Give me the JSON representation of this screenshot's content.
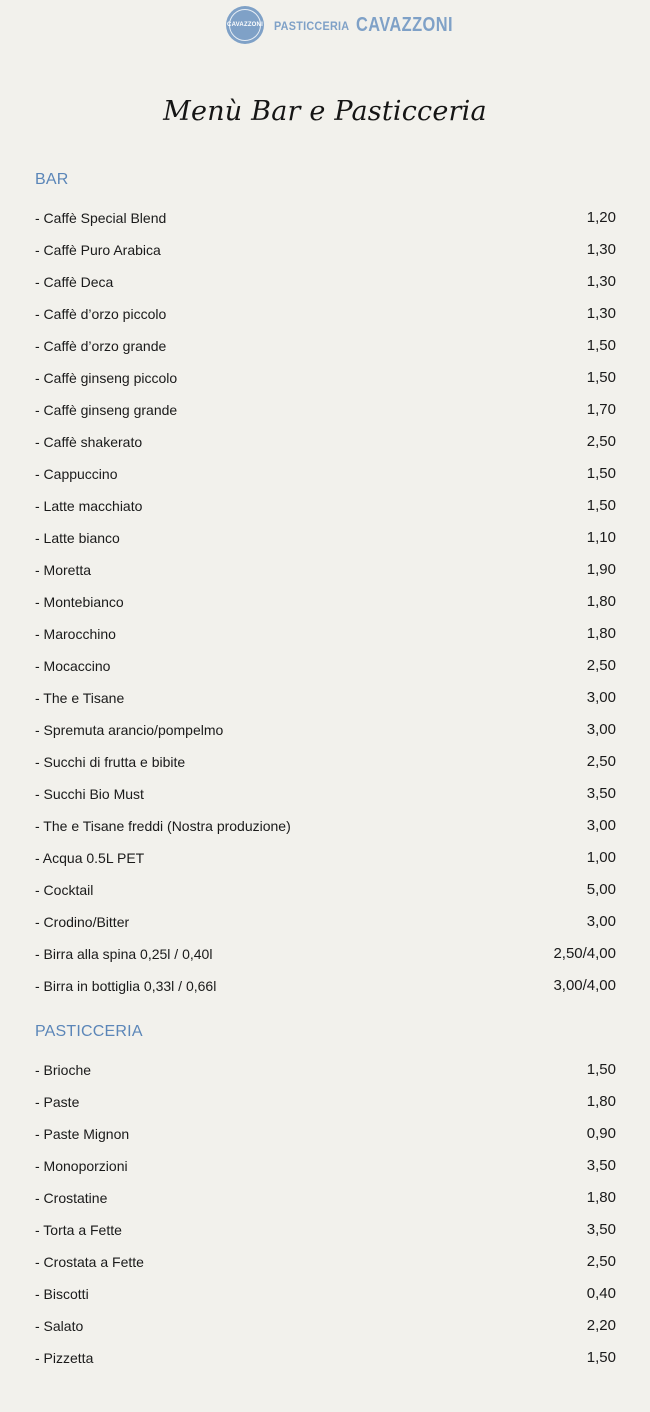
{
  "header": {
    "badge_line1": "CAVAZZONI",
    "badge_line2": "",
    "brand_small": "PASTICCERIA",
    "brand_big": "CAVAZZONI"
  },
  "title": "Menù Bar e Pasticceria",
  "colors": {
    "background": "#f2f1ec",
    "accent": "#5b86b8",
    "logo": "#7fa1c7"
  },
  "sections": [
    {
      "title": "BAR",
      "items": [
        {
          "name": "- Caffè Special Blend",
          "price": "1,20"
        },
        {
          "name": "- Caffè Puro Arabica",
          "price": "1,30"
        },
        {
          "name": "- Caffè Deca",
          "price": "1,30"
        },
        {
          "name": "- Caffè d’orzo piccolo",
          "price": "1,30"
        },
        {
          "name": "- Caffè d’orzo grande",
          "price": "1,50"
        },
        {
          "name": "- Caffè ginseng piccolo",
          "price": "1,50"
        },
        {
          "name": "- Caffè ginseng grande",
          "price": "1,70"
        },
        {
          "name": "- Caffè shakerato",
          "price": "2,50"
        },
        {
          "name": "- Cappuccino",
          "price": "1,50"
        },
        {
          "name": "- Latte macchiato",
          "price": "1,50"
        },
        {
          "name": "- Latte bianco",
          "price": "1,10"
        },
        {
          "name": "- Moretta",
          "price": "1,90"
        },
        {
          "name": "- Montebianco",
          "price": "1,80"
        },
        {
          "name": "- Marocchino",
          "price": "1,80"
        },
        {
          "name": "- Mocaccino",
          "price": "2,50"
        },
        {
          "name": "- The e Tisane",
          "price": "3,00"
        },
        {
          "name": "- Spremuta arancio/pompelmo",
          "price": "3,00"
        },
        {
          "name": "- Succhi di frutta e bibite",
          "price": "2,50"
        },
        {
          "name": "- Succhi Bio Must",
          "price": "3,50"
        },
        {
          "name": "- The e Tisane freddi (Nostra produzione)",
          "price": "3,00"
        },
        {
          "name": "- Acqua 0.5L PET",
          "price": "1,00"
        },
        {
          "name": "- Cocktail",
          "price": "5,00"
        },
        {
          "name": "- Crodino/Bitter",
          "price": "3,00"
        },
        {
          "name": "- Birra alla spina 0,25l / 0,40l",
          "price": "2,50/4,00"
        },
        {
          "name": "- Birra in bottiglia 0,33l / 0,66l",
          "price": "3,00/4,00"
        }
      ]
    },
    {
      "title": "PASTICCERIA",
      "items": [
        {
          "name": "- Brioche",
          "price": "1,50"
        },
        {
          "name": "- Paste",
          "price": "1,80"
        },
        {
          "name": "- Paste Mignon",
          "price": "0,90"
        },
        {
          "name": "- Monoporzioni",
          "price": "3,50"
        },
        {
          "name": "- Crostatine",
          "price": "1,80"
        },
        {
          "name": "- Torta a Fette",
          "price": "3,50"
        },
        {
          "name": "- Crostata a Fette",
          "price": "2,50"
        },
        {
          "name": "- Biscotti",
          "price": "0,40"
        },
        {
          "name": "- Salato",
          "price": "2,20"
        },
        {
          "name": "- Pizzetta",
          "price": "1,50"
        }
      ]
    }
  ]
}
